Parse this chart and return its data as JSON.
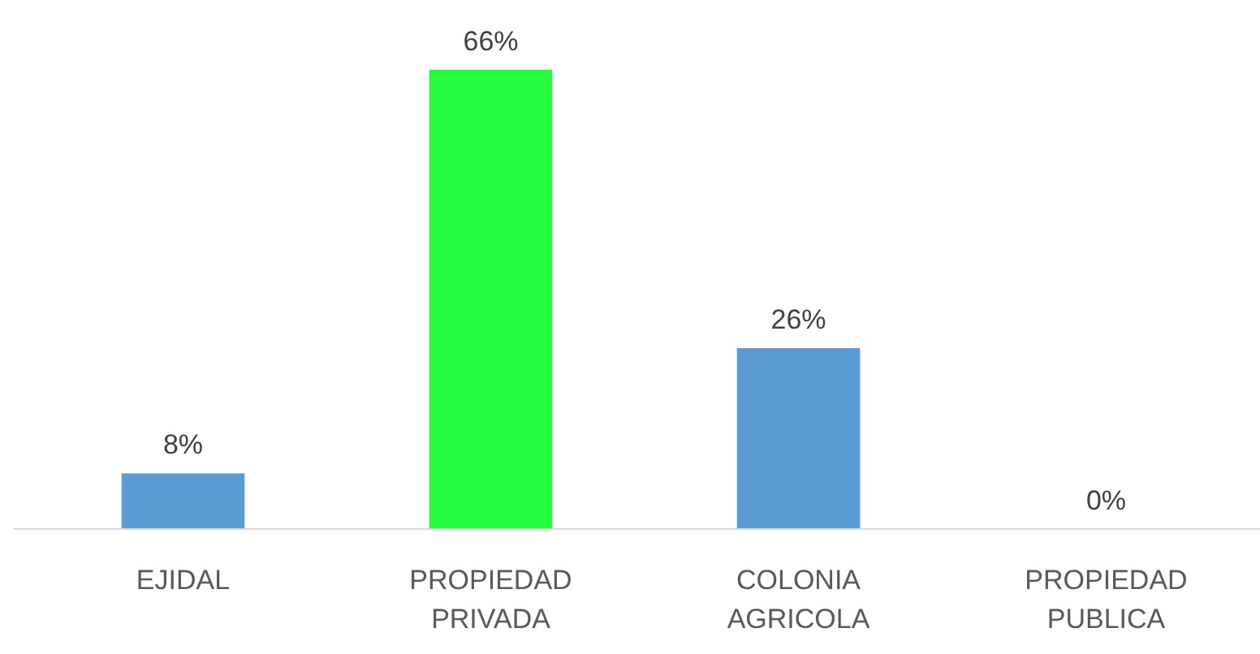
{
  "chart_data": {
    "type": "bar",
    "categories": [
      "EJIDAL",
      "PROPIEDAD PRIVADA",
      "COLONIA AGRICOLA",
      "PROPIEDAD PUBLICA"
    ],
    "values": [
      8,
      66,
      26,
      0
    ],
    "colors": [
      "#5b9bd5",
      "#26fc3d",
      "#5b9bd5",
      "#5b9bd5"
    ],
    "value_labels": [
      "8%",
      "66%",
      "26%",
      "0%"
    ],
    "tick_labels": "x"
  }
}
